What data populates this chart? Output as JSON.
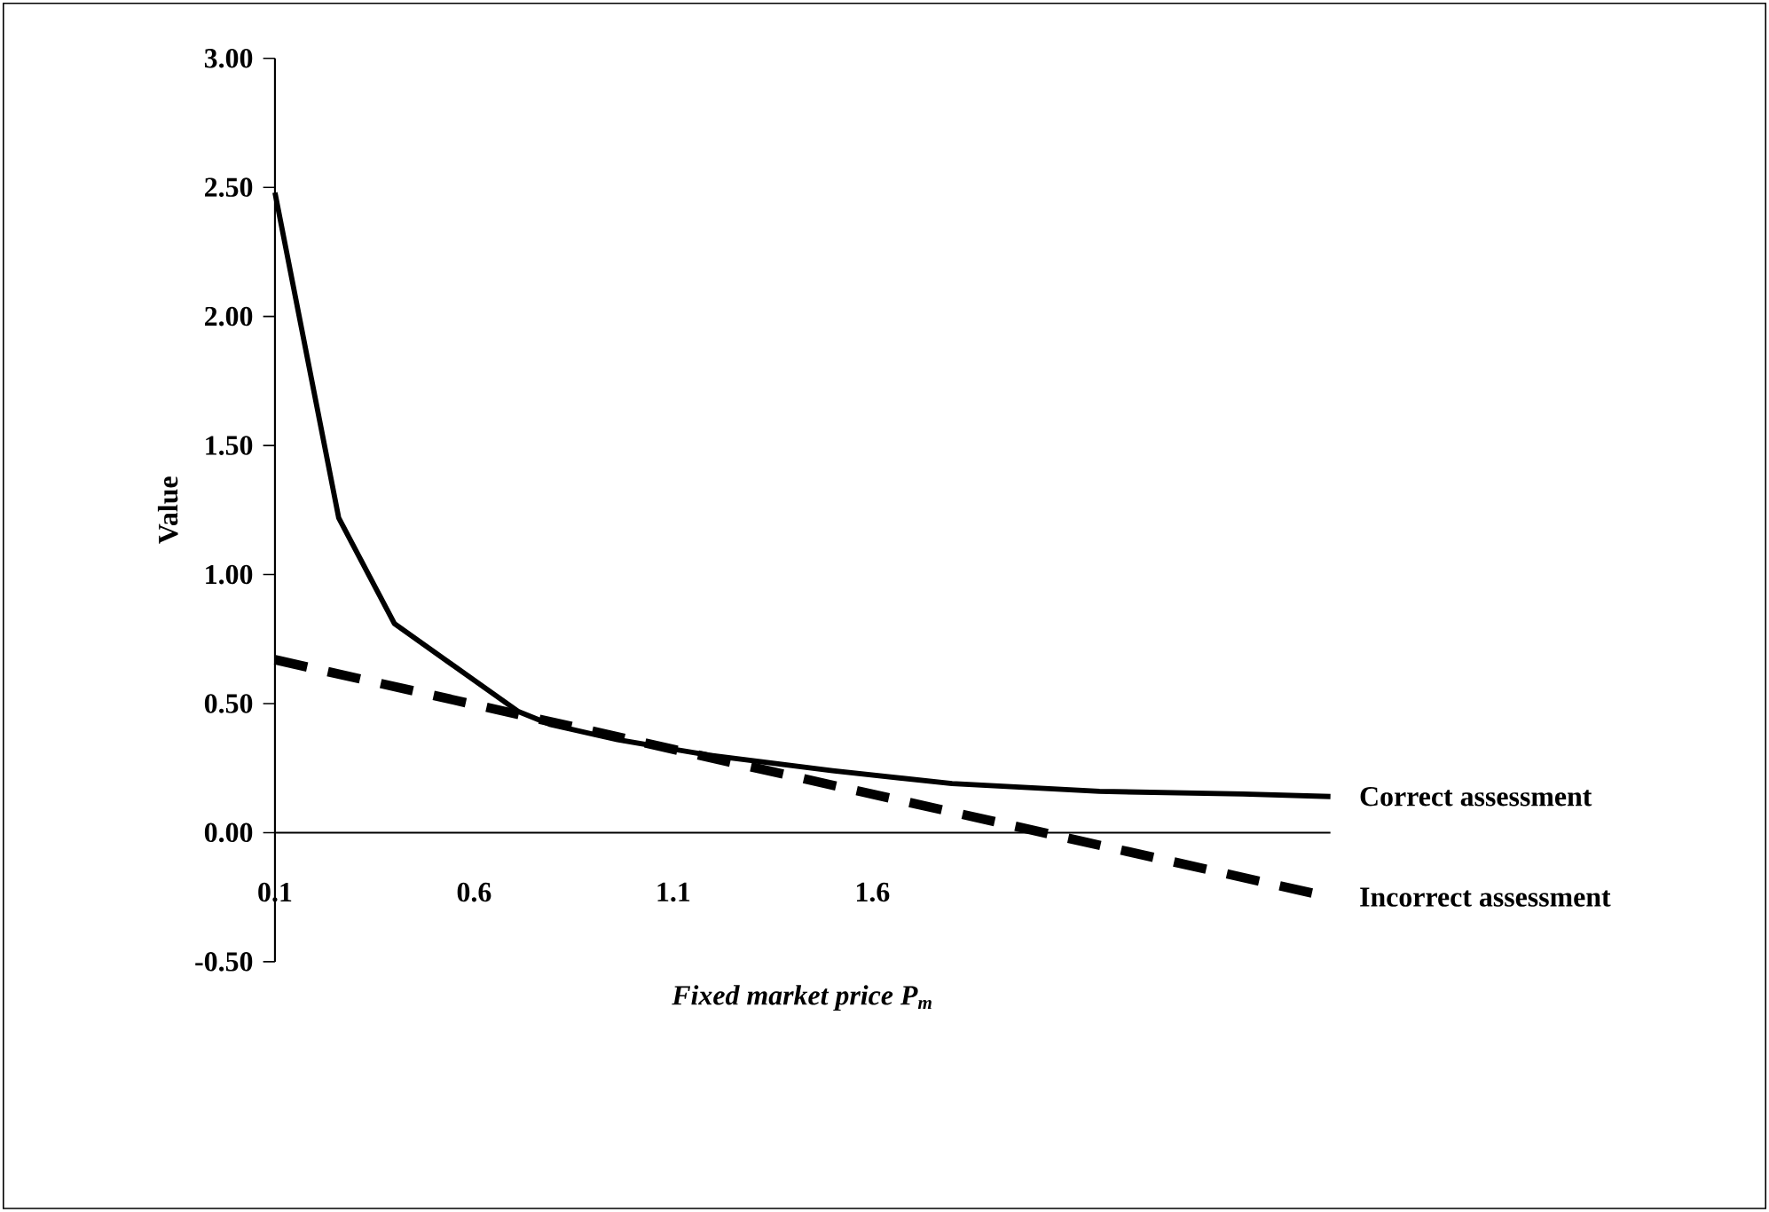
{
  "chart_data": {
    "type": "line",
    "xlabel": "Fixed market price P$_{m}$",
    "ylabel": "Value",
    "xlim": [
      0.1,
      2.75
    ],
    "ylim": [
      -0.5,
      3.0
    ],
    "xticks": [
      0.1,
      0.6,
      1.1,
      1.6
    ],
    "yticks": [
      {
        "value": -0.5,
        "label": "-0.50"
      },
      {
        "value": 0,
        "label": "0.00"
      },
      {
        "value": 0.5,
        "label": "0.50"
      },
      {
        "value": 1,
        "label": "1.00"
      },
      {
        "value": 1.5,
        "label": "1.50"
      },
      {
        "value": 2,
        "label": "2.00"
      },
      {
        "value": 2.5,
        "label": "2.50"
      },
      {
        "value": 3,
        "label": "3.00"
      }
    ],
    "grid": false,
    "legend": false,
    "marker": "none",
    "series": [
      {
        "name": "Correct assessment",
        "color": "#000000",
        "line_style": "solid",
        "x": [
          0.1,
          0.26,
          0.4,
          0.71,
          0.79,
          0.96,
          1.19,
          1.5,
          1.8,
          2.17,
          2.53,
          2.75
        ],
        "values": [
          2.48,
          1.22,
          0.81,
          0.47,
          0.42,
          0.36,
          0.3,
          0.24,
          0.19,
          0.16,
          0.15,
          0.14
        ]
      },
      {
        "name": "Incorrect assessment",
        "color": "#000000",
        "line_style": "dashed",
        "x": [
          0.1,
          2.75
        ],
        "values": [
          0.67,
          -0.25
        ]
      }
    ]
  }
}
